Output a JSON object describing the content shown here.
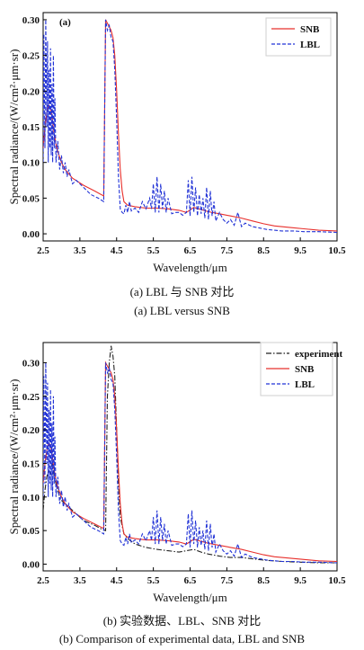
{
  "captions": {
    "a_cn": "(a) LBL 与 SNB 对比",
    "a_en": "(a) LBL versus SNB",
    "b_cn": "(b)  实验数据、LBL、SNB 对比",
    "b_en": "(b) Comparison of experimental data, LBL and SNB"
  },
  "colors": {
    "SNB": "#e8302c",
    "LBL": "#2233d6",
    "experiment": "#222222"
  },
  "chart_data": [
    {
      "type": "line",
      "panel_tag": "(a)",
      "title": "",
      "xlabel": "Wavelength/μm",
      "ylabel": "Spectral radiance/(W/cm²·μm·sr)",
      "xlim": [
        2.5,
        10.5
      ],
      "ylim": [
        -0.01,
        0.31
      ],
      "xticks": [
        "2.5",
        "3.5",
        "4.5",
        "5.5",
        "6.5",
        "7.5",
        "8.5",
        "9.5",
        "10.5"
      ],
      "yticks": [
        "0.00",
        "0.05",
        "0.10",
        "0.15",
        "0.20",
        "0.25",
        "0.30"
      ],
      "legend_position": "top-right",
      "series": [
        {
          "name": "SNB",
          "style": "solid",
          "color": "#e8302c",
          "x": [
            2.5,
            2.55,
            2.6,
            2.65,
            2.7,
            2.75,
            2.8,
            2.85,
            2.9,
            3.0,
            3.1,
            3.3,
            3.6,
            3.9,
            4.15,
            4.2,
            4.25,
            4.3,
            4.35,
            4.4,
            4.45,
            4.5,
            4.55,
            4.6,
            4.65,
            4.7,
            4.8,
            5.0,
            5.3,
            5.6,
            5.9,
            6.2,
            6.4,
            6.6,
            6.8,
            7.0,
            7.3,
            7.6,
            7.9,
            8.2,
            8.5,
            8.8,
            9.2,
            9.6,
            10.0,
            10.5
          ],
          "y": [
            0.12,
            0.15,
            0.17,
            0.18,
            0.178,
            0.16,
            0.14,
            0.125,
            0.115,
            0.1,
            0.09,
            0.078,
            0.068,
            0.06,
            0.053,
            0.3,
            0.295,
            0.29,
            0.285,
            0.275,
            0.25,
            0.2,
            0.14,
            0.09,
            0.06,
            0.045,
            0.04,
            0.038,
            0.036,
            0.036,
            0.035,
            0.033,
            0.03,
            0.037,
            0.034,
            0.031,
            0.028,
            0.025,
            0.022,
            0.018,
            0.014,
            0.011,
            0.009,
            0.007,
            0.005,
            0.004
          ]
        },
        {
          "name": "LBL",
          "style": "dashed",
          "color": "#2233d6",
          "x": [
            2.5,
            2.52,
            2.55,
            2.57,
            2.6,
            2.62,
            2.64,
            2.66,
            2.68,
            2.7,
            2.72,
            2.74,
            2.76,
            2.78,
            2.8,
            2.82,
            2.85,
            2.9,
            2.95,
            3.0,
            3.05,
            3.1,
            3.15,
            3.2,
            3.3,
            3.4,
            3.6,
            3.8,
            4.0,
            4.15,
            4.2,
            4.25,
            4.3,
            4.35,
            4.4,
            4.45,
            4.5,
            4.55,
            4.6,
            4.65,
            4.7,
            4.75,
            4.8,
            4.85,
            4.9,
            5.0,
            5.1,
            5.2,
            5.3,
            5.4,
            5.45,
            5.5,
            5.55,
            5.6,
            5.65,
            5.7,
            5.75,
            5.8,
            5.85,
            5.9,
            6.0,
            6.1,
            6.2,
            6.3,
            6.4,
            6.45,
            6.5,
            6.55,
            6.6,
            6.65,
            6.7,
            6.75,
            6.8,
            6.85,
            6.9,
            6.95,
            7.0,
            7.05,
            7.1,
            7.15,
            7.2,
            7.3,
            7.4,
            7.5,
            7.6,
            7.7,
            7.8,
            7.9,
            8.0,
            8.2,
            8.4,
            8.6,
            8.8,
            9.0,
            9.3,
            9.6,
            10.0,
            10.5
          ],
          "y": [
            0.1,
            0.28,
            0.12,
            0.3,
            0.15,
            0.27,
            0.1,
            0.23,
            0.12,
            0.26,
            0.11,
            0.21,
            0.1,
            0.25,
            0.12,
            0.19,
            0.1,
            0.13,
            0.09,
            0.11,
            0.085,
            0.1,
            0.08,
            0.09,
            0.07,
            0.075,
            0.065,
            0.055,
            0.05,
            0.045,
            0.3,
            0.285,
            0.292,
            0.275,
            0.27,
            0.23,
            0.16,
            0.08,
            0.035,
            0.03,
            0.028,
            0.04,
            0.03,
            0.045,
            0.032,
            0.036,
            0.03,
            0.045,
            0.035,
            0.05,
            0.035,
            0.07,
            0.03,
            0.08,
            0.03,
            0.07,
            0.035,
            0.06,
            0.03,
            0.05,
            0.028,
            0.03,
            0.03,
            0.026,
            0.03,
            0.075,
            0.025,
            0.08,
            0.03,
            0.065,
            0.025,
            0.055,
            0.028,
            0.05,
            0.022,
            0.065,
            0.02,
            0.06,
            0.025,
            0.045,
            0.018,
            0.03,
            0.02,
            0.015,
            0.02,
            0.012,
            0.03,
            0.01,
            0.015,
            0.01,
            0.008,
            0.006,
            0.005,
            0.004,
            0.004,
            0.003,
            0.003,
            0.002
          ]
        }
      ]
    },
    {
      "type": "line",
      "title": "",
      "xlabel": "Wavelength/μm",
      "ylabel": "Spectral radiance/(W/cm²·μm·sr)",
      "xlim": [
        2.5,
        10.5
      ],
      "ylim": [
        -0.01,
        0.33
      ],
      "xticks": [
        "2.5",
        "3.5",
        "4.5",
        "5.5",
        "6.5",
        "7.5",
        "8.5",
        "9.5",
        "10.5"
      ],
      "yticks": [
        "0.00",
        "0.05",
        "0.10",
        "0.15",
        "0.20",
        "0.25",
        "0.30"
      ],
      "legend_position": "top-right",
      "series": [
        {
          "name": "experiment",
          "style": "dashdot",
          "color": "#222222",
          "x": [
            2.5,
            2.55,
            2.6,
            2.65,
            2.7,
            2.75,
            2.8,
            2.85,
            2.9,
            2.95,
            3.0,
            3.1,
            3.2,
            3.4,
            3.6,
            3.9,
            4.1,
            4.2,
            4.25,
            4.3,
            4.35,
            4.4,
            4.45,
            4.5,
            4.55,
            4.6,
            4.7,
            4.8,
            5.0,
            5.3,
            5.6,
            5.9,
            6.2,
            6.4,
            6.6,
            6.8,
            7.0,
            7.3,
            7.6,
            7.9,
            8.2,
            8.5,
            9.0,
            9.5,
            10.0,
            10.5
          ],
          "y": [
            0.08,
            0.11,
            0.13,
            0.14,
            0.135,
            0.15,
            0.13,
            0.12,
            0.11,
            0.1,
            0.095,
            0.09,
            0.085,
            0.075,
            0.065,
            0.058,
            0.052,
            0.05,
            0.25,
            0.3,
            0.325,
            0.31,
            0.28,
            0.2,
            0.12,
            0.07,
            0.045,
            0.038,
            0.03,
            0.025,
            0.022,
            0.02,
            0.018,
            0.02,
            0.022,
            0.018,
            0.015,
            0.012,
            0.01,
            0.01,
            0.008,
            0.006,
            0.004,
            0.003,
            0.002,
            0.002
          ]
        },
        {
          "name": "SNB",
          "style": "solid",
          "color": "#e8302c",
          "x": [
            2.5,
            2.55,
            2.6,
            2.65,
            2.7,
            2.75,
            2.8,
            2.85,
            2.9,
            3.0,
            3.1,
            3.3,
            3.6,
            3.9,
            4.15,
            4.2,
            4.25,
            4.3,
            4.35,
            4.4,
            4.45,
            4.5,
            4.55,
            4.6,
            4.65,
            4.7,
            4.8,
            5.0,
            5.3,
            5.6,
            5.9,
            6.2,
            6.4,
            6.6,
            6.8,
            7.0,
            7.3,
            7.6,
            7.9,
            8.2,
            8.5,
            8.8,
            9.2,
            9.6,
            10.0,
            10.5
          ],
          "y": [
            0.12,
            0.15,
            0.17,
            0.18,
            0.178,
            0.16,
            0.14,
            0.125,
            0.115,
            0.1,
            0.09,
            0.078,
            0.068,
            0.06,
            0.053,
            0.3,
            0.295,
            0.29,
            0.285,
            0.275,
            0.25,
            0.2,
            0.14,
            0.09,
            0.06,
            0.045,
            0.04,
            0.038,
            0.036,
            0.036,
            0.035,
            0.033,
            0.03,
            0.037,
            0.034,
            0.031,
            0.028,
            0.025,
            0.022,
            0.018,
            0.014,
            0.011,
            0.009,
            0.007,
            0.005,
            0.004
          ]
        },
        {
          "name": "LBL",
          "style": "dashed",
          "color": "#2233d6",
          "x": [
            2.5,
            2.52,
            2.55,
            2.57,
            2.6,
            2.62,
            2.64,
            2.66,
            2.68,
            2.7,
            2.72,
            2.74,
            2.76,
            2.78,
            2.8,
            2.82,
            2.85,
            2.9,
            2.95,
            3.0,
            3.05,
            3.1,
            3.15,
            3.2,
            3.3,
            3.4,
            3.6,
            3.8,
            4.0,
            4.15,
            4.2,
            4.25,
            4.3,
            4.35,
            4.4,
            4.45,
            4.5,
            4.55,
            4.6,
            4.65,
            4.7,
            4.75,
            4.8,
            4.85,
            4.9,
            5.0,
            5.1,
            5.2,
            5.3,
            5.4,
            5.45,
            5.5,
            5.55,
            5.6,
            5.65,
            5.7,
            5.75,
            5.8,
            5.85,
            5.9,
            6.0,
            6.1,
            6.2,
            6.3,
            6.4,
            6.45,
            6.5,
            6.55,
            6.6,
            6.65,
            6.7,
            6.75,
            6.8,
            6.85,
            6.9,
            6.95,
            7.0,
            7.05,
            7.1,
            7.15,
            7.2,
            7.3,
            7.4,
            7.5,
            7.6,
            7.7,
            7.8,
            7.9,
            8.0,
            8.2,
            8.4,
            8.6,
            8.8,
            9.0,
            9.3,
            9.6,
            10.0,
            10.5
          ],
          "y": [
            0.1,
            0.28,
            0.12,
            0.3,
            0.15,
            0.27,
            0.1,
            0.23,
            0.12,
            0.26,
            0.11,
            0.21,
            0.1,
            0.25,
            0.12,
            0.19,
            0.1,
            0.13,
            0.09,
            0.11,
            0.085,
            0.1,
            0.08,
            0.09,
            0.07,
            0.075,
            0.065,
            0.055,
            0.05,
            0.045,
            0.3,
            0.285,
            0.292,
            0.275,
            0.27,
            0.23,
            0.16,
            0.08,
            0.035,
            0.03,
            0.028,
            0.04,
            0.03,
            0.045,
            0.032,
            0.036,
            0.03,
            0.045,
            0.035,
            0.05,
            0.035,
            0.07,
            0.03,
            0.08,
            0.03,
            0.07,
            0.035,
            0.06,
            0.03,
            0.05,
            0.028,
            0.03,
            0.03,
            0.026,
            0.03,
            0.075,
            0.025,
            0.08,
            0.03,
            0.065,
            0.025,
            0.055,
            0.028,
            0.05,
            0.022,
            0.065,
            0.02,
            0.06,
            0.025,
            0.045,
            0.018,
            0.03,
            0.02,
            0.015,
            0.02,
            0.012,
            0.03,
            0.01,
            0.015,
            0.01,
            0.008,
            0.006,
            0.005,
            0.004,
            0.004,
            0.003,
            0.003,
            0.002
          ]
        }
      ]
    }
  ]
}
